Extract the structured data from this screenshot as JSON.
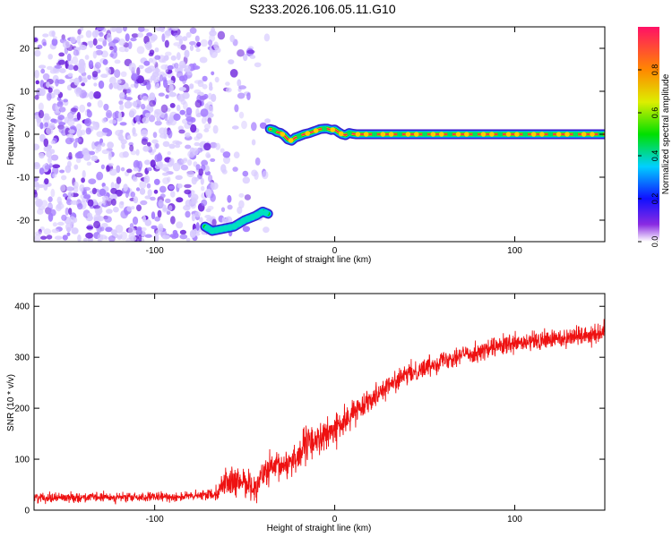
{
  "title": "S233.2026.106.05.11.G10",
  "colors": {
    "snr_line": "#ee1111",
    "scatter_light": "#d9ccff",
    "scatter_mid": "#a57dff",
    "scatter_dark": "#6a1fdc",
    "ridge": "#ee1166",
    "axis": "#000000"
  },
  "chart_data": [
    {
      "type": "heatmap",
      "title": "",
      "xlabel": "Height of straight line (km)",
      "ylabel": "Frequency (Hz)",
      "xlim": [
        -167,
        150
      ],
      "ylim": [
        -25,
        25
      ],
      "x_ticks": [
        -100,
        0,
        100
      ],
      "x_tick_labels": [
        "-100",
        "0",
        "100"
      ],
      "y_ticks": [
        -20,
        -10,
        0,
        10,
        20
      ],
      "y_tick_labels": [
        "-20",
        "-10",
        "0",
        "10",
        "20"
      ],
      "colorbar": {
        "label": "Normalized spectral amplitude",
        "range": [
          0,
          1
        ],
        "ticks": [
          0,
          0.2,
          0.4,
          0.6,
          0.8
        ],
        "tick_labels": [
          "0.0",
          "0.2",
          "0.4",
          "0.6",
          "0.8"
        ],
        "colormap": "rainbow"
      },
      "regions": [
        {
          "name": "noise",
          "x_range": [
            -167,
            -67
          ],
          "y_range": [
            -25,
            25
          ],
          "amplitude": 0.15
        },
        {
          "name": "sparse noise",
          "x_range": [
            -67,
            -37
          ],
          "y_range": [
            -25,
            25
          ],
          "amplitude": 0.05
        }
      ],
      "ridges": [
        {
          "x": [
            -72,
            -68,
            -62,
            -56,
            -50,
            -44,
            -40,
            -37
          ],
          "y": [
            -21.5,
            -22.5,
            -22,
            -21.5,
            -20,
            -19,
            -18,
            -18.5
          ],
          "amplitude": 0.35
        },
        {
          "x": [
            -36,
            -34,
            -32,
            -30,
            -28,
            -26,
            -24,
            -22,
            -20,
            -17,
            -14,
            -12,
            -10,
            -8,
            -6,
            -4,
            -2,
            0,
            2,
            4,
            6,
            8,
            10,
            12,
            20,
            40,
            60,
            80,
            100,
            120,
            140,
            150
          ],
          "y": [
            1.2,
            1.0,
            0.5,
            0.3,
            -0.3,
            -1.2,
            -1.5,
            -0.8,
            -0.5,
            0.0,
            0.3,
            0.6,
            0.9,
            1.2,
            1.3,
            1.3,
            1.0,
            1.1,
            0.5,
            0.0,
            -0.2,
            0.3,
            0.1,
            0.0,
            0.0,
            0.0,
            0.0,
            0.0,
            0.0,
            0.0,
            0.0,
            0.0
          ],
          "amplitude": 0.9
        }
      ]
    },
    {
      "type": "line",
      "title": "",
      "xlabel": "Height of straight line (km)",
      "ylabel": "SNR (10 * v/v)",
      "xlim": [
        -167,
        150
      ],
      "ylim": [
        0,
        425
      ],
      "x_ticks": [
        -100,
        0,
        100
      ],
      "x_tick_labels": [
        "-100",
        "0",
        "100"
      ],
      "y_ticks": [
        0,
        100,
        200,
        300,
        400
      ],
      "y_tick_labels": [
        "0",
        "100",
        "200",
        "300",
        "400"
      ],
      "series": [
        {
          "x": [
            -167,
            -150,
            -130,
            -110,
            -90,
            -75,
            -65,
            -60,
            -55,
            -50,
            -45,
            -40,
            -35,
            -30,
            -25,
            -20,
            -15,
            -10,
            -5,
            0,
            5,
            10,
            15,
            20,
            30,
            40,
            50,
            60,
            70,
            80,
            90,
            100,
            110,
            120,
            130,
            140,
            150
          ],
          "y": [
            25,
            25,
            25,
            25,
            26,
            28,
            35,
            60,
            50,
            60,
            40,
            70,
            80,
            85,
            95,
            110,
            130,
            140,
            145,
            160,
            170,
            190,
            205,
            220,
            245,
            265,
            280,
            295,
            305,
            310,
            320,
            325,
            330,
            335,
            340,
            345,
            350
          ],
          "noise_amplitude": [
            12,
            12,
            12,
            12,
            12,
            12,
            18,
            40,
            35,
            40,
            30,
            40,
            40,
            35,
            40,
            45,
            45,
            45,
            40,
            40,
            35,
            30,
            28,
            28,
            26,
            25,
            25,
            25,
            25,
            25,
            25,
            26,
            26,
            26,
            26,
            27,
            27
          ]
        }
      ]
    }
  ]
}
